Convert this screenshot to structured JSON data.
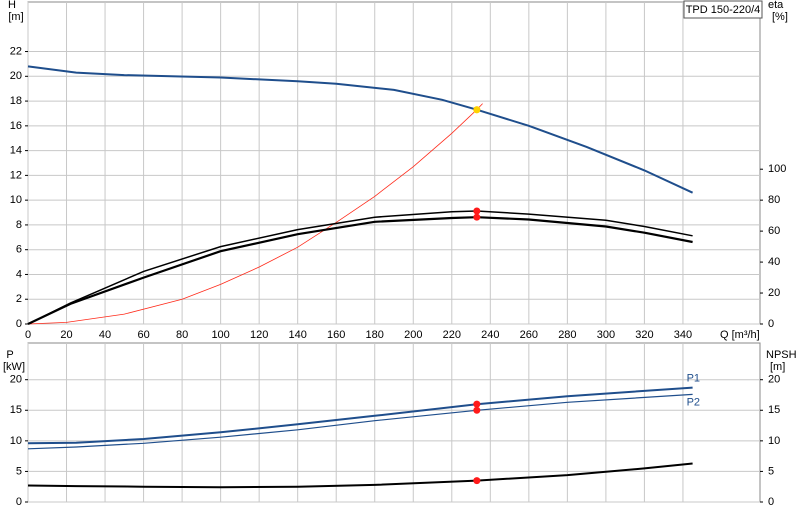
{
  "chart_data": [
    {
      "type": "line",
      "title": "TPD 150-220/4",
      "ylabel": "H",
      "ylabel_unit": "[m]",
      "y2label": "eta",
      "y2label_unit": "[%]",
      "xlabel": "Q [m³/h]",
      "xlim": [
        0,
        380
      ],
      "xticks": [
        0,
        20,
        40,
        60,
        80,
        100,
        120,
        140,
        160,
        180,
        200,
        220,
        240,
        260,
        280,
        300,
        320,
        340
      ],
      "ylim": [
        0,
        26
      ],
      "yticks": [
        0,
        2,
        4,
        6,
        8,
        10,
        12,
        14,
        16,
        18,
        20,
        22
      ],
      "y2lim": [
        0,
        208
      ],
      "y2ticks": [
        0,
        20,
        40,
        60,
        80,
        100
      ],
      "grid": true,
      "operating_x": 233,
      "series": [
        {
          "color": "#ff2a1a",
          "width": 0.8,
          "axis": "y",
          "marker_color": "#ffd200",
          "x": [
            0,
            20,
            50,
            80,
            100,
            120,
            140,
            160,
            180,
            200,
            220,
            233,
            236
          ],
          "values": [
            0,
            0.13,
            0.8,
            2.0,
            3.2,
            4.6,
            6.2,
            8.2,
            10.3,
            12.7,
            15.4,
            17.3,
            17.8
          ]
        },
        {
          "color": "#1f4e8c",
          "width": 2,
          "axis": "y",
          "marker_color": "#ffd200",
          "x": [
            0,
            25,
            50,
            100,
            140,
            160,
            190,
            215,
            233,
            260,
            290,
            320,
            345
          ],
          "values": [
            20.8,
            20.3,
            20.1,
            19.9,
            19.6,
            19.4,
            18.9,
            18.1,
            17.3,
            16.0,
            14.3,
            12.4,
            10.6
          ]
        },
        {
          "color": "#000000",
          "width": 1.5,
          "axis": "y2",
          "marker_color": "#ff1a1a",
          "x": [
            0,
            22,
            60,
            100,
            140,
            180,
            220,
            233,
            260,
            300,
            320,
            345
          ],
          "values": [
            0,
            13.5,
            34,
            50,
            61,
            69,
            72.5,
            73,
            71,
            67,
            63,
            57
          ]
        },
        {
          "color": "#000000",
          "width": 2.2,
          "axis": "y2",
          "marker_color": "#ff1a1a",
          "x": [
            0,
            22,
            60,
            100,
            140,
            180,
            220,
            233,
            260,
            300,
            320,
            345
          ],
          "values": [
            0,
            13,
            30,
            47,
            58,
            66,
            68.5,
            69,
            67.5,
            63,
            59,
            53
          ]
        }
      ]
    },
    {
      "type": "line",
      "ylabel": "P",
      "ylabel_unit": "[kW]",
      "y2label": "NPSH",
      "y2label_unit": "[m]",
      "xlim": [
        0,
        380
      ],
      "xticks": [
        0,
        20,
        40,
        60,
        80,
        100,
        120,
        140,
        160,
        180,
        200,
        220,
        240,
        260,
        280,
        300,
        320,
        340
      ],
      "ylim": [
        0,
        26
      ],
      "yticks": [
        0,
        5,
        10,
        15,
        20
      ],
      "y2lim": [
        0,
        26
      ],
      "y2ticks": [
        0,
        5,
        10,
        15,
        20
      ],
      "grid": true,
      "operating_x": 233,
      "series": [
        {
          "name": "P1",
          "color": "#1f4e8c",
          "width": 2,
          "axis": "y",
          "marker_color": "#ff1a1a",
          "x": [
            0,
            25,
            60,
            100,
            140,
            180,
            233,
            280,
            345
          ],
          "values": [
            9.6,
            9.7,
            10.3,
            11.4,
            12.7,
            14.1,
            16.0,
            17.3,
            18.7
          ]
        },
        {
          "name": "P2",
          "color": "#1f4e8c",
          "width": 1.2,
          "axis": "y",
          "marker_color": "#ff1a1a",
          "x": [
            0,
            25,
            60,
            100,
            140,
            180,
            233,
            280,
            345
          ],
          "values": [
            8.7,
            9.0,
            9.6,
            10.6,
            11.8,
            13.3,
            15.0,
            16.3,
            17.6
          ]
        },
        {
          "color": "#000000",
          "width": 2,
          "axis": "y2",
          "marker_color": "#ff1a1a",
          "x": [
            0,
            25,
            60,
            100,
            140,
            180,
            233,
            280,
            320,
            345
          ],
          "values": [
            2.7,
            2.6,
            2.5,
            2.4,
            2.5,
            2.8,
            3.5,
            4.4,
            5.5,
            6.3
          ]
        }
      ]
    }
  ]
}
